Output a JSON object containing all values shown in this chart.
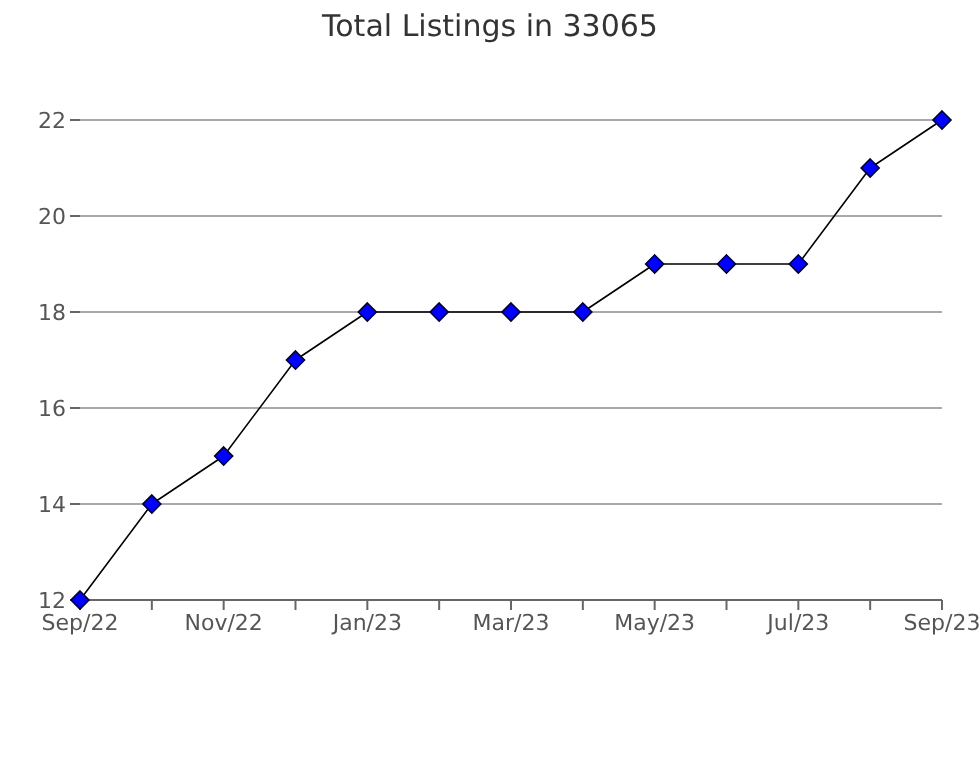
{
  "chart_data": {
    "type": "line",
    "title": "Total Listings in 33065",
    "categories": [
      "Sep/22",
      null,
      "Nov/22",
      null,
      "Jan/23",
      null,
      "Mar/23",
      null,
      "May/23",
      null,
      "Jul/23",
      null,
      "Sep/23"
    ],
    "series": [
      {
        "color": "#0000ff",
        "values": [
          12,
          14,
          15,
          17,
          18,
          18,
          18,
          18,
          19,
          19,
          19,
          21,
          22
        ]
      }
    ],
    "ylim": [
      12,
      22
    ],
    "yticks": [
      12,
      14,
      16,
      18,
      20,
      22
    ],
    "grid": "y",
    "marker": "diamond",
    "line_style": "solid"
  }
}
